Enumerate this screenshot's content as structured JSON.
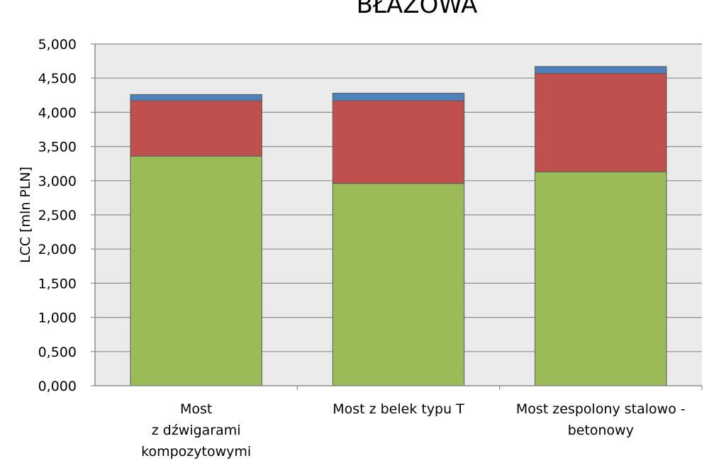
{
  "chart_data": {
    "type": "bar",
    "stacked": true,
    "title": "BŁAŻOWA",
    "xlabel": "",
    "ylabel": "LCC [mln PLN]",
    "ylim": [
      0,
      5
    ],
    "yticks": [
      "0,000",
      "0,500",
      "1,000",
      "1,500",
      "2,000",
      "2,500",
      "3,000",
      "3,500",
      "4,000",
      "4,500",
      "5,000"
    ],
    "grid": true,
    "categories": [
      [
        "Most",
        "z dźwigarami",
        "kompozytowymi"
      ],
      [
        "Most z belek typu T"
      ],
      [
        "Most zespolony stalowo -",
        "betonowy"
      ]
    ],
    "series": [
      {
        "color": "#9bbb59",
        "values": [
          3.36,
          2.96,
          3.13
        ]
      },
      {
        "color": "#c0504d",
        "values": [
          0.81,
          1.21,
          1.44
        ]
      },
      {
        "color": "#4f81bd",
        "values": [
          0.09,
          0.11,
          0.1
        ]
      }
    ],
    "colors": {
      "plot_background": "#ebebeb",
      "gridline": "#8c8c8c"
    }
  }
}
